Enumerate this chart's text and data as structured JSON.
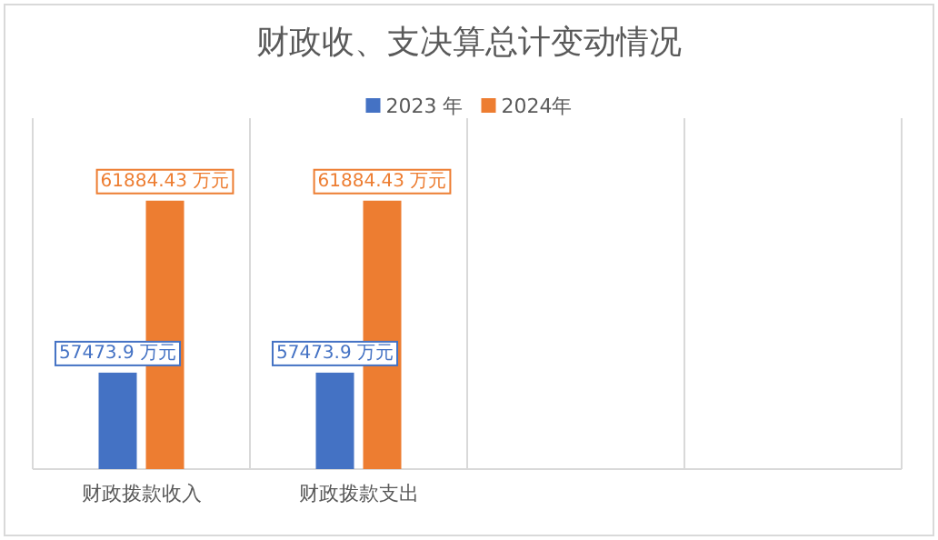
{
  "chart_data": {
    "type": "bar",
    "title": "财政收、支决算总计变动情况",
    "categories": [
      "财政拨款收入",
      "财政拨款支出",
      null,
      null
    ],
    "series": [
      {
        "name": "2023 年",
        "color": "#4472c4",
        "values": [
          57473.9,
          57473.9,
          null,
          null
        ],
        "value_labels": [
          "57473.9 万元",
          "57473.9 万元",
          null,
          null
        ]
      },
      {
        "name": "2024年",
        "color": "#ed7d31",
        "values": [
          61884.43,
          61884.43,
          null,
          null
        ],
        "value_labels": [
          "61884.43 万元",
          "61884.43 万元",
          null,
          null
        ]
      }
    ],
    "ylim": [
      55000,
      64000
    ],
    "grid": "x",
    "legend": "top"
  }
}
